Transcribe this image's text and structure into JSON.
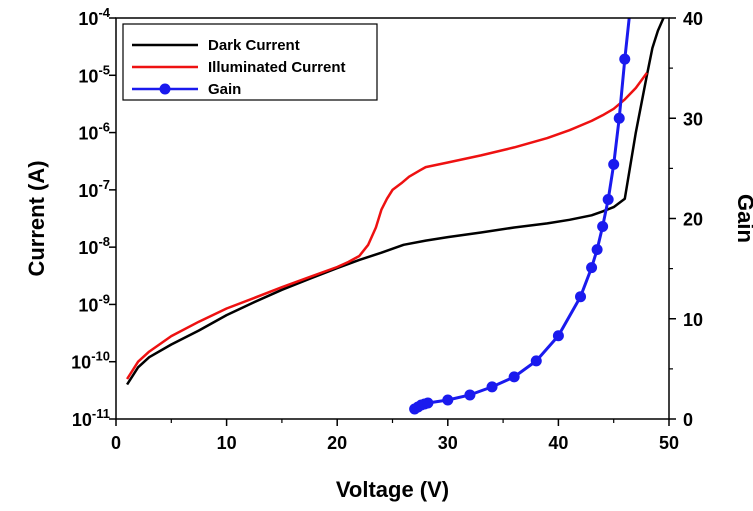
{
  "chart_data": {
    "type": "line",
    "xlabel": "Voltage (V)",
    "ylabel_left": "Current (A)",
    "ylabel_right": "Gain",
    "xlim": [
      0,
      50
    ],
    "ylim_left": [
      1e-11,
      0.0001
    ],
    "yscale_left": "log",
    "ylim_right": [
      0,
      40
    ],
    "x_ticks": [
      "0",
      "10",
      "20",
      "30",
      "40",
      "50"
    ],
    "y_left_tick_mantissa": [
      "10",
      "10",
      "10",
      "10",
      "10",
      "10",
      "10",
      "10"
    ],
    "y_left_tick_exponents": [
      "-11",
      "-10",
      "-9",
      "-8",
      "-7",
      "-6",
      "-5",
      "-4"
    ],
    "y_right_ticks": [
      "0",
      "10",
      "20",
      "30",
      "40"
    ],
    "grid": false,
    "legend_placement": "top-left",
    "colors": {
      "dark": "#000000",
      "illuminated": "#ee1111",
      "gain": "#1a1aee"
    },
    "series": [
      {
        "name": "Dark Current",
        "axis": "left",
        "x": [
          1,
          2,
          3,
          5,
          7.5,
          10,
          12.5,
          15,
          17.5,
          20,
          22,
          24,
          26,
          28,
          30,
          33,
          36,
          39,
          41,
          43,
          44,
          45,
          46,
          47,
          48,
          48.5,
          49,
          49.5
        ],
        "y": [
          4e-11,
          8e-11,
          1.2e-10,
          2e-10,
          3.5e-10,
          6.5e-10,
          1.1e-09,
          1.8e-09,
          2.8e-09,
          4.3e-09,
          6e-09,
          8e-09,
          1.1e-08,
          1.3e-08,
          1.5e-08,
          1.8e-08,
          2.2e-08,
          2.6e-08,
          3e-08,
          3.6e-08,
          4.2e-08,
          5e-08,
          7e-08,
          1e-06,
          1e-05,
          3e-05,
          6e-05,
          0.0001
        ]
      },
      {
        "name": "Illuminated Current",
        "axis": "left",
        "x": [
          1,
          2,
          3,
          5,
          7.5,
          10,
          12.5,
          15,
          17.5,
          20,
          21,
          22,
          22.8,
          23.5,
          24,
          24.5,
          25,
          25.8,
          26.5,
          27.5,
          28,
          30,
          33,
          36,
          39,
          41,
          43,
          44,
          45,
          46,
          47,
          48
        ],
        "y": [
          5e-11,
          1e-10,
          1.5e-10,
          2.8e-10,
          5e-10,
          8.5e-10,
          1.3e-09,
          2e-09,
          3e-09,
          4.5e-09,
          5.5e-09,
          7e-09,
          1.1e-08,
          2.2e-08,
          4.5e-08,
          7e-08,
          1e-07,
          1.3e-07,
          1.7e-07,
          2.2e-07,
          2.5e-07,
          3e-07,
          4e-07,
          5.5e-07,
          8e-07,
          1.1e-06,
          1.6e-06,
          2e-06,
          2.6e-06,
          3.8e-06,
          6e-06,
          1.1e-05
        ]
      },
      {
        "name": "Gain",
        "axis": "right",
        "x": [
          27,
          27.3,
          27.6,
          27.9,
          28.2,
          30,
          32,
          34,
          36,
          38,
          40,
          42,
          43,
          43.5,
          44,
          44.5,
          45,
          45.5,
          46
        ],
        "y": [
          1.0,
          1.2,
          1.4,
          1.5,
          1.6,
          1.9,
          2.4,
          3.2,
          4.2,
          5.8,
          8.3,
          12.2,
          15.1,
          16.9,
          19.2,
          21.9,
          25.4,
          30.0,
          35.9
        ]
      }
    ],
    "gain_line_extension": {
      "x": [
        46,
        46.4
      ],
      "y": [
        35.9,
        40
      ]
    }
  }
}
